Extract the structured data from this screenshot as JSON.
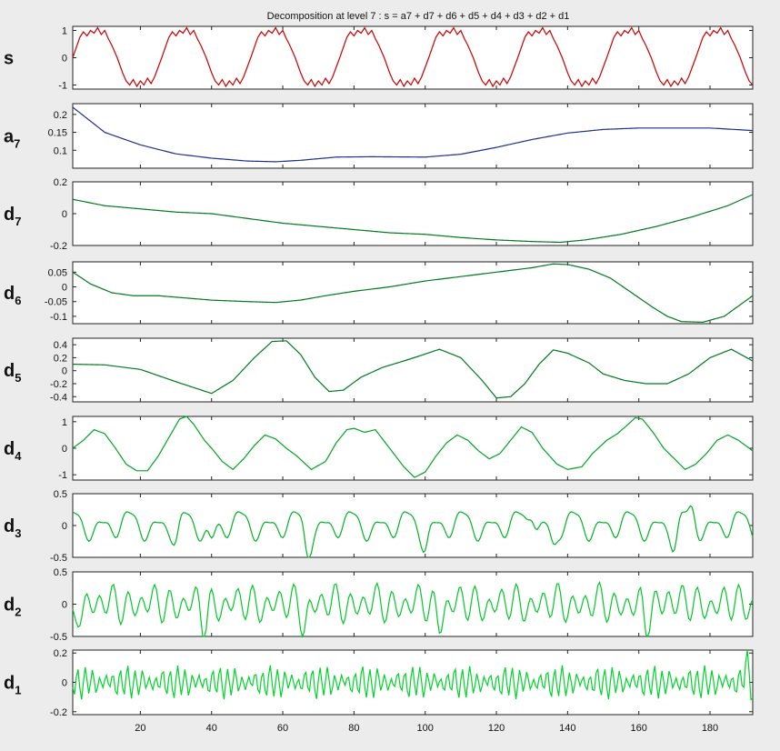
{
  "figure": {
    "title": "Decomposition at level 7 : s = a7 + d7 + d6 + d5 + d4 + d3 + d2 + d1"
  },
  "chart_data": {
    "type": "line",
    "x_range": [
      1,
      192
    ],
    "x_ticks": [
      "20",
      "40",
      "60",
      "80",
      "100",
      "120",
      "140",
      "160",
      "180"
    ],
    "subplots": [
      {
        "id": "s",
        "label_main": "s",
        "label_sub": "",
        "color": "#cc0000",
        "ylim": [
          -1.15,
          1.15
        ],
        "y_ticks": [
          "1",
          "0",
          "-1"
        ],
        "y_tick_values": [
          1,
          0,
          -1
        ],
        "signal": {
          "kind": "periodic",
          "period": 25,
          "segments": [
            [
              0,
              0
            ],
            [
              2,
              0.75
            ],
            [
              3,
              0.95
            ],
            [
              4,
              0.8
            ],
            [
              5,
              1.0
            ],
            [
              6,
              0.9
            ],
            [
              7,
              1.1
            ],
            [
              8,
              0.85
            ],
            [
              9,
              1.0
            ],
            [
              10,
              0.7
            ],
            [
              11,
              0.45
            ],
            [
              12.5,
              0
            ],
            [
              14,
              -0.55
            ],
            [
              15,
              -0.85
            ],
            [
              16,
              -1.0
            ],
            [
              17,
              -0.8
            ],
            [
              18,
              -1.05
            ],
            [
              19,
              -0.85
            ],
            [
              20,
              -1.0
            ],
            [
              21,
              -0.75
            ],
            [
              22,
              -0.95
            ],
            [
              23,
              -0.7
            ],
            [
              25,
              0
            ]
          ]
        }
      },
      {
        "id": "a7",
        "label_main": "a",
        "label_sub": "7",
        "color": "#1f2f8f",
        "ylim": [
          0.05,
          0.23
        ],
        "y_ticks": [
          "0.2",
          "0.15",
          "0.1"
        ],
        "y_tick_values": [
          0.2,
          0.15,
          0.1
        ],
        "points": [
          [
            1,
            0.22
          ],
          [
            10,
            0.15
          ],
          [
            20,
            0.115
          ],
          [
            30,
            0.09
          ],
          [
            40,
            0.078
          ],
          [
            50,
            0.07
          ],
          [
            58,
            0.068
          ],
          [
            65,
            0.072
          ],
          [
            75,
            0.081
          ],
          [
            85,
            0.082
          ],
          [
            100,
            0.081
          ],
          [
            110,
            0.089
          ],
          [
            120,
            0.108
          ],
          [
            130,
            0.13
          ],
          [
            140,
            0.148
          ],
          [
            150,
            0.158
          ],
          [
            160,
            0.162
          ],
          [
            170,
            0.162
          ],
          [
            180,
            0.162
          ],
          [
            192,
            0.155
          ]
        ]
      },
      {
        "id": "d7",
        "label_main": "d",
        "label_sub": "7",
        "color": "#007a1e",
        "ylim": [
          -0.2,
          0.2
        ],
        "y_ticks": [
          "0.2",
          "0",
          "-0.2"
        ],
        "y_tick_values": [
          0.2,
          0,
          -0.2
        ],
        "points": [
          [
            1,
            0.09
          ],
          [
            10,
            0.05
          ],
          [
            20,
            0.03
          ],
          [
            30,
            0.01
          ],
          [
            40,
            0.0
          ],
          [
            50,
            -0.03
          ],
          [
            60,
            -0.06
          ],
          [
            70,
            -0.08
          ],
          [
            80,
            -0.1
          ],
          [
            90,
            -0.12
          ],
          [
            100,
            -0.13
          ],
          [
            110,
            -0.15
          ],
          [
            120,
            -0.165
          ],
          [
            130,
            -0.175
          ],
          [
            138,
            -0.18
          ],
          [
            145,
            -0.165
          ],
          [
            155,
            -0.13
          ],
          [
            165,
            -0.08
          ],
          [
            175,
            -0.02
          ],
          [
            185,
            0.05
          ],
          [
            192,
            0.12
          ]
        ]
      },
      {
        "id": "d6",
        "label_main": "d",
        "label_sub": "6",
        "color": "#007a1e",
        "ylim": [
          -0.125,
          0.085
        ],
        "y_ticks": [
          "0.05",
          "0",
          "-0.05",
          "-0.1"
        ],
        "y_tick_values": [
          0.05,
          0,
          -0.05,
          -0.1
        ],
        "points": [
          [
            1,
            0.05
          ],
          [
            6,
            0.01
          ],
          [
            12,
            -0.02
          ],
          [
            18,
            -0.03
          ],
          [
            25,
            -0.03
          ],
          [
            30,
            -0.035
          ],
          [
            40,
            -0.045
          ],
          [
            50,
            -0.05
          ],
          [
            58,
            -0.053
          ],
          [
            65,
            -0.045
          ],
          [
            72,
            -0.03
          ],
          [
            80,
            -0.015
          ],
          [
            90,
            0.0
          ],
          [
            100,
            0.02
          ],
          [
            110,
            0.035
          ],
          [
            120,
            0.05
          ],
          [
            130,
            0.065
          ],
          [
            136,
            0.078
          ],
          [
            140,
            0.076
          ],
          [
            146,
            0.06
          ],
          [
            152,
            0.03
          ],
          [
            158,
            -0.02
          ],
          [
            164,
            -0.07
          ],
          [
            168,
            -0.1
          ],
          [
            172,
            -0.118
          ],
          [
            178,
            -0.12
          ],
          [
            184,
            -0.1
          ],
          [
            192,
            -0.03
          ]
        ]
      },
      {
        "id": "d5",
        "label_main": "d",
        "label_sub": "5",
        "color": "#007a1e",
        "ylim": [
          -0.48,
          0.5
        ],
        "y_ticks": [
          "0.4",
          "0.2",
          "0",
          "-0.2",
          "-0.4"
        ],
        "y_tick_values": [
          0.4,
          0.2,
          0,
          -0.2,
          -0.4
        ],
        "points": [
          [
            1,
            0.1
          ],
          [
            10,
            0.09
          ],
          [
            20,
            0.02
          ],
          [
            30,
            -0.17
          ],
          [
            40,
            -0.35
          ],
          [
            46,
            -0.15
          ],
          [
            52,
            0.2
          ],
          [
            57,
            0.45
          ],
          [
            61,
            0.46
          ],
          [
            65,
            0.25
          ],
          [
            69,
            -0.1
          ],
          [
            73,
            -0.32
          ],
          [
            77,
            -0.3
          ],
          [
            82,
            -0.1
          ],
          [
            88,
            0.05
          ],
          [
            94,
            0.15
          ],
          [
            98,
            0.22
          ],
          [
            104,
            0.33
          ],
          [
            110,
            0.2
          ],
          [
            116,
            -0.15
          ],
          [
            120,
            -0.42
          ],
          [
            124,
            -0.4
          ],
          [
            128,
            -0.2
          ],
          [
            132,
            0.1
          ],
          [
            136,
            0.32
          ],
          [
            140,
            0.27
          ],
          [
            146,
            0.12
          ],
          [
            150,
            -0.05
          ],
          [
            156,
            -0.15
          ],
          [
            162,
            -0.2
          ],
          [
            168,
            -0.2
          ],
          [
            174,
            -0.05
          ],
          [
            180,
            0.2
          ],
          [
            186,
            0.33
          ],
          [
            192,
            0.15
          ]
        ]
      },
      {
        "id": "d4",
        "label_main": "d",
        "label_sub": "4",
        "color": "#00a523",
        "ylim": [
          -1.2,
          1.2
        ],
        "y_ticks": [
          "1",
          "0",
          "-1"
        ],
        "y_tick_values": [
          1,
          0,
          -1
        ],
        "points": [
          [
            1,
            0.0
          ],
          [
            4,
            0.3
          ],
          [
            7,
            0.7
          ],
          [
            10,
            0.55
          ],
          [
            13,
            0.0
          ],
          [
            16,
            -0.6
          ],
          [
            19,
            -0.85
          ],
          [
            22,
            -0.85
          ],
          [
            25,
            -0.3
          ],
          [
            28,
            0.4
          ],
          [
            31,
            1.1
          ],
          [
            33,
            1.2
          ],
          [
            35,
            0.9
          ],
          [
            38,
            0.3
          ],
          [
            40,
            0.0
          ],
          [
            43,
            -0.5
          ],
          [
            46,
            -0.8
          ],
          [
            49,
            -0.4
          ],
          [
            52,
            0.1
          ],
          [
            55,
            0.5
          ],
          [
            58,
            0.35
          ],
          [
            61,
            0.0
          ],
          [
            64,
            -0.3
          ],
          [
            68,
            -0.8
          ],
          [
            72,
            -0.5
          ],
          [
            75,
            0.2
          ],
          [
            78,
            0.7
          ],
          [
            80,
            0.75
          ],
          [
            83,
            0.6
          ],
          [
            86,
            0.7
          ],
          [
            90,
            0.0
          ],
          [
            94,
            -0.7
          ],
          [
            97,
            -1.1
          ],
          [
            100,
            -0.9
          ],
          [
            103,
            -0.3
          ],
          [
            106,
            0.2
          ],
          [
            109,
            0.5
          ],
          [
            112,
            0.3
          ],
          [
            115,
            -0.1
          ],
          [
            118,
            -0.4
          ],
          [
            121,
            -0.2
          ],
          [
            124,
            0.3
          ],
          [
            127,
            0.8
          ],
          [
            130,
            0.6
          ],
          [
            133,
            0.0
          ],
          [
            137,
            -0.6
          ],
          [
            140,
            -0.8
          ],
          [
            144,
            -0.7
          ],
          [
            147,
            -0.2
          ],
          [
            151,
            0.3
          ],
          [
            154,
            0.55
          ],
          [
            157,
            0.9
          ],
          [
            159,
            1.15
          ],
          [
            161,
            1.1
          ],
          [
            164,
            0.6
          ],
          [
            167,
            0.0
          ],
          [
            170,
            -0.4
          ],
          [
            173,
            -0.8
          ],
          [
            176,
            -0.6
          ],
          [
            179,
            -0.2
          ],
          [
            182,
            0.3
          ],
          [
            185,
            0.5
          ],
          [
            188,
            0.3
          ],
          [
            192,
            -0.1
          ]
        ]
      },
      {
        "id": "d3",
        "label_main": "d",
        "label_sub": "3",
        "color": "#00b326",
        "ylim": [
          -0.5,
          0.5
        ],
        "y_ticks": [
          "0.5",
          "0",
          "-0.5"
        ],
        "y_tick_values": [
          0.5,
          0,
          -0.5
        ],
        "signal": {
          "kind": "sum",
          "components": [
            [
              0.17,
              7.8,
              0.4
            ],
            [
              0.08,
              15.6,
              1.3
            ],
            [
              0.05,
              3.9,
              2.1
            ]
          ],
          "bursts": [
            [
              30,
              -0.22
            ],
            [
              40,
              -0.25
            ],
            [
              67,
              -0.38
            ],
            [
              100,
              -0.22
            ],
            [
              130,
              0.3
            ],
            [
              136,
              -0.3
            ],
            [
              170,
              -0.28
            ],
            [
              175,
              0.2
            ]
          ]
        }
      },
      {
        "id": "d2",
        "label_main": "d",
        "label_sub": "2",
        "color": "#00c928",
        "ylim": [
          -0.5,
          0.5
        ],
        "y_ticks": [
          "0.5",
          "0",
          "-0.5"
        ],
        "y_tick_values": [
          0.5,
          0,
          -0.5
        ],
        "signal": {
          "kind": "sum",
          "components": [
            [
              0.2,
              3.9,
              0.3
            ],
            [
              0.1,
              5.7,
              1.1
            ],
            [
              0.05,
              12.5,
              2.5
            ]
          ],
          "bursts": [
            [
              1,
              -0.35
            ],
            [
              38,
              -0.3
            ],
            [
              66,
              -0.25
            ],
            [
              104,
              -0.25
            ],
            [
              162,
              -0.35
            ],
            [
              168,
              0.15
            ]
          ]
        }
      },
      {
        "id": "d1",
        "label_main": "d",
        "label_sub": "1",
        "color": "#00d42a",
        "ylim": [
          -0.22,
          0.22
        ],
        "y_ticks": [
          "0.2",
          "0",
          "-0.2"
        ],
        "y_tick_values": [
          0.2,
          0,
          -0.2
        ],
        "signal": {
          "kind": "sum",
          "components": [
            [
              0.07,
              2.0,
              0.2
            ],
            [
              0.035,
              2.35,
              1.7
            ],
            [
              0.015,
              5.1,
              0.9
            ]
          ],
          "bursts": [
            [
              191,
              0.2
            ],
            [
              192,
              -0.2
            ]
          ]
        }
      }
    ]
  }
}
